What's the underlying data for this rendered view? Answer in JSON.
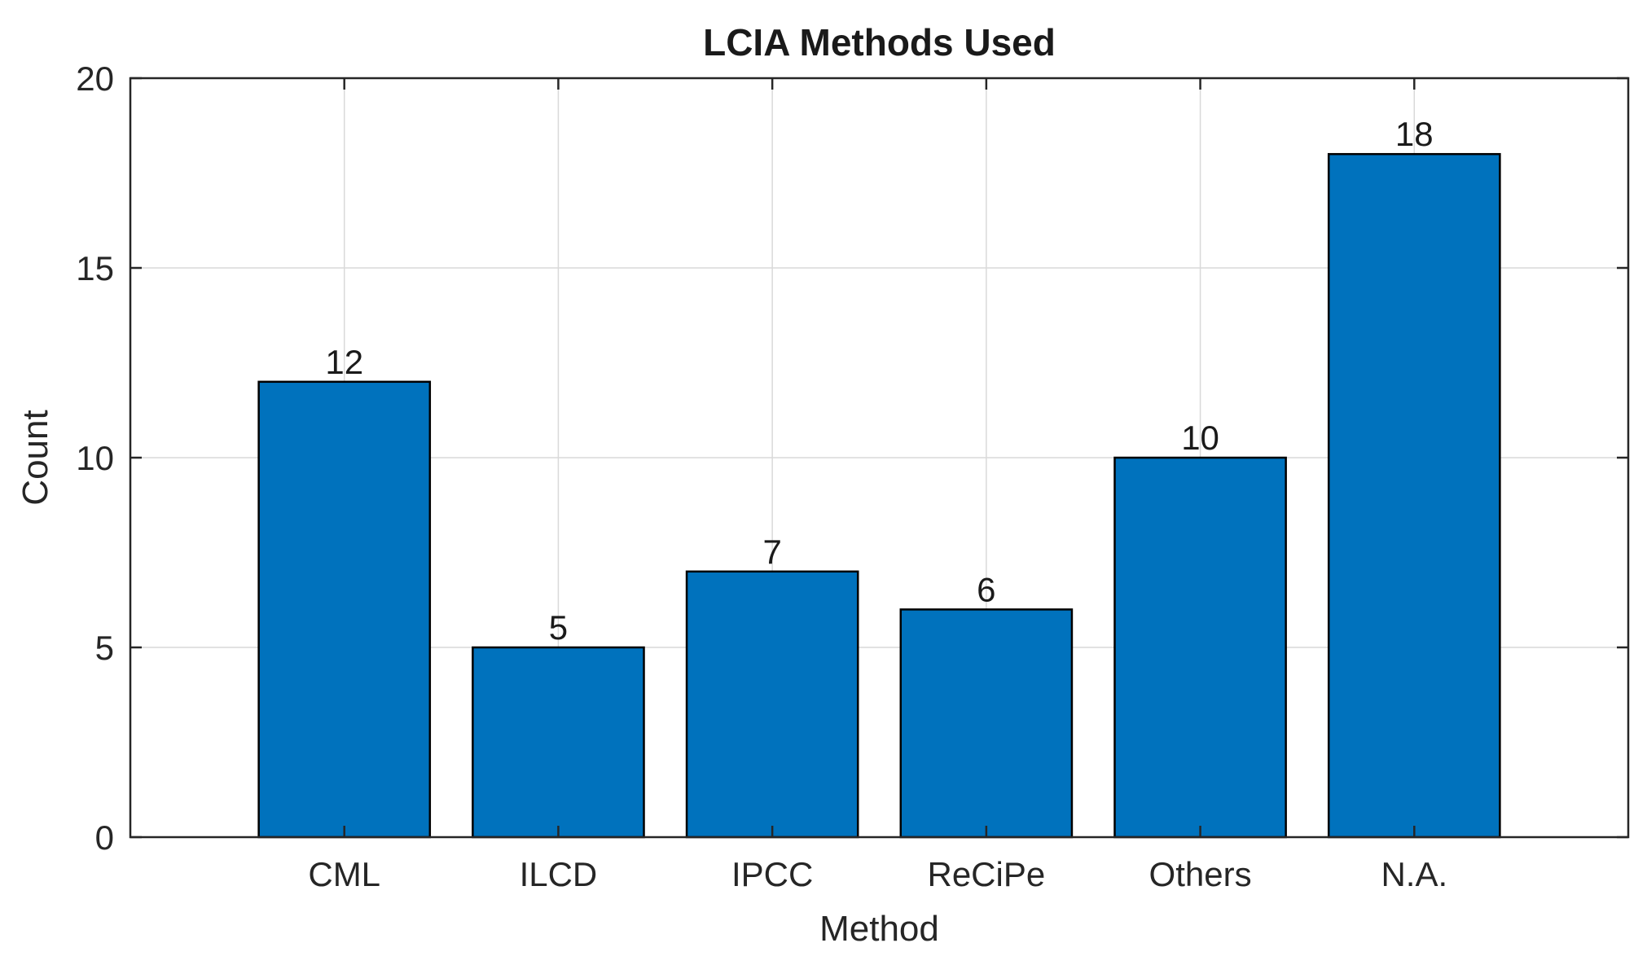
{
  "chart_data": {
    "type": "bar",
    "title": "LCIA Methods Used",
    "xlabel": "Method",
    "ylabel": "Count",
    "categories": [
      "CML",
      "ILCD",
      "IPCC",
      "ReCiPe",
      "Others",
      "N.A."
    ],
    "values": [
      12,
      5,
      7,
      6,
      10,
      18
    ],
    "data_labels": [
      "12",
      "5",
      "7",
      "6",
      "10",
      "18"
    ],
    "ylim": [
      0,
      20
    ],
    "yticks": [
      0,
      5,
      10,
      15,
      20
    ],
    "ytick_labels": [
      "0",
      "5",
      "10",
      "15",
      "20"
    ],
    "xlim": [
      0,
      7
    ],
    "grid": true,
    "bar_color": "#0072BD"
  }
}
